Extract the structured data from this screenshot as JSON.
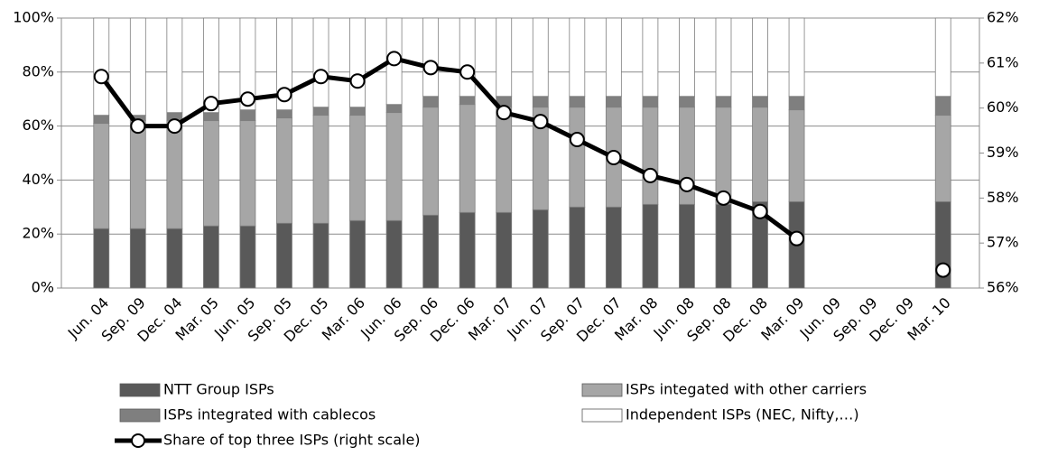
{
  "chart_data": {
    "type": "bar",
    "stacked": true,
    "categories": [
      "Jun. 04",
      "Sep. 09",
      "Dec. 04",
      "Mar. 05",
      "Jun. 05",
      "Sep. 05",
      "Dec. 05",
      "Mar. 06",
      "Jun. 06",
      "Sep. 06",
      "Dec. 06",
      "Mar. 07",
      "Jun. 07",
      "Sep. 07",
      "Dec. 07",
      "Mar. 08",
      "Jun. 08",
      "Sep. 08",
      "Dec. 08",
      "Mar. 09",
      "Jun. 09",
      "Sep. 09",
      "Dec. 09",
      "Mar. 10"
    ],
    "series": [
      {
        "name": "NTT Group ISPs",
        "color": "#595959",
        "values": [
          22,
          22,
          22,
          23,
          23,
          24,
          24,
          25,
          25,
          27,
          28,
          28,
          29,
          30,
          30,
          31,
          31,
          31,
          32,
          32,
          null,
          null,
          null,
          32
        ]
      },
      {
        "name": "ISPs integated with other carriers",
        "color": "#a6a6a6",
        "values": [
          39,
          40,
          40,
          39,
          39,
          39,
          40,
          39,
          40,
          40,
          40,
          39,
          38,
          37,
          37,
          36,
          36,
          36,
          35,
          34,
          null,
          null,
          null,
          32
        ]
      },
      {
        "name": "ISPs integrated with cablecos",
        "color": "#7f7f7f",
        "values": [
          3,
          2,
          3,
          3,
          4,
          3,
          3,
          3,
          3,
          4,
          3,
          4,
          4,
          4,
          4,
          4,
          4,
          4,
          4,
          5,
          null,
          null,
          null,
          7
        ]
      },
      {
        "name": "Independent ISPs (NEC, Nifty,…)",
        "color": "#ffffff",
        "values": [
          36,
          36,
          35,
          35,
          34,
          34,
          33,
          33,
          32,
          29,
          29,
          29,
          29,
          29,
          29,
          29,
          29,
          29,
          29,
          29,
          null,
          null,
          null,
          29
        ]
      },
      {
        "name": "Share of top three ISPs (right scale)",
        "type": "line",
        "axis": "y2",
        "color": "#000000",
        "values": [
          60.7,
          59.6,
          59.6,
          60.1,
          60.2,
          60.3,
          60.7,
          60.6,
          61.1,
          60.9,
          60.8,
          59.9,
          59.7,
          59.3,
          58.9,
          58.5,
          58.3,
          58.0,
          57.7,
          57.1,
          null,
          null,
          null,
          56.4
        ]
      }
    ],
    "ylim": [
      0,
      100
    ],
    "yticks": [
      {
        "value": 0,
        "label": "0%"
      },
      {
        "value": 20,
        "label": "20%"
      },
      {
        "value": 40,
        "label": "40%"
      },
      {
        "value": 60,
        "label": "60%"
      },
      {
        "value": 80,
        "label": "80%"
      },
      {
        "value": 100,
        "label": "100%"
      }
    ],
    "y2lim": [
      56,
      62
    ],
    "y2ticks": [
      {
        "value": 56,
        "label": "56%"
      },
      {
        "value": 57,
        "label": "57%"
      },
      {
        "value": 58,
        "label": "58%"
      },
      {
        "value": 59,
        "label": "59%"
      },
      {
        "value": 60,
        "label": "60%"
      },
      {
        "value": 61,
        "label": "61%"
      },
      {
        "value": 62,
        "label": "62%"
      }
    ],
    "grid": true,
    "legend": "bottom"
  }
}
